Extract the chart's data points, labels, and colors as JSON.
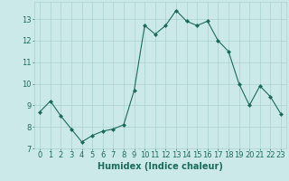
{
  "x": [
    0,
    1,
    2,
    3,
    4,
    5,
    6,
    7,
    8,
    9,
    10,
    11,
    12,
    13,
    14,
    15,
    16,
    17,
    18,
    19,
    20,
    21,
    22,
    23
  ],
  "y": [
    8.7,
    9.2,
    8.5,
    7.9,
    7.3,
    7.6,
    7.8,
    7.9,
    8.1,
    9.7,
    12.7,
    12.3,
    12.7,
    13.4,
    12.9,
    12.7,
    12.9,
    12.0,
    11.5,
    10.0,
    9.0,
    9.9,
    9.4,
    8.6
  ],
  "line_color": "#1a6b5a",
  "marker": "D",
  "marker_size": 2.0,
  "bg_color": "#cce9e9",
  "grid_color": "#aad0d0",
  "xlabel": "Humidex (Indice chaleur)",
  "ylim": [
    7,
    13.8
  ],
  "xlim": [
    -0.5,
    23.5
  ],
  "yticks": [
    7,
    8,
    9,
    10,
    11,
    12,
    13
  ],
  "xticks": [
    0,
    1,
    2,
    3,
    4,
    5,
    6,
    7,
    8,
    9,
    10,
    11,
    12,
    13,
    14,
    15,
    16,
    17,
    18,
    19,
    20,
    21,
    22,
    23
  ],
  "tick_color": "#1a6b5a",
  "label_fontsize": 7.0,
  "tick_fontsize": 6.0
}
